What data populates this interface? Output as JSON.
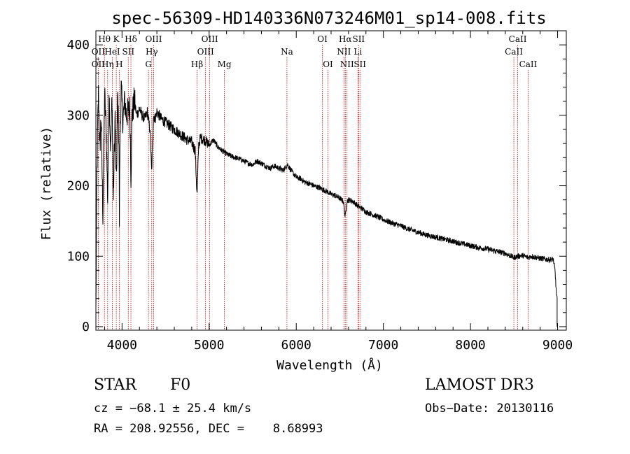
{
  "chart_data": {
    "type": "line",
    "title": "spec-56309-HD140336N073246M01_sp14-008.fits",
    "xlabel": "Wavelength (Å)",
    "ylabel": "Flux (relative)",
    "xlim": [
      3700,
      9100
    ],
    "ylim": [
      -5,
      420
    ],
    "x_ticks": [
      4000,
      5000,
      6000,
      7000,
      8000,
      9000
    ],
    "y_ticks": [
      0,
      100,
      200,
      300,
      400
    ],
    "series": [
      {
        "name": "flux",
        "x": [
          3700,
          3710,
          3720,
          3730,
          3745,
          3760,
          3780,
          3800,
          3820,
          3835,
          3850,
          3870,
          3885,
          3900,
          3920,
          3935,
          3950,
          3965,
          3970,
          3975,
          3990,
          4010,
          4030,
          4050,
          4090,
          4102,
          4115,
          4140,
          4170,
          4200,
          4230,
          4260,
          4290,
          4320,
          4340,
          4360,
          4380,
          4400,
          4450,
          4500,
          4550,
          4600,
          4650,
          4700,
          4750,
          4800,
          4840,
          4861,
          4880,
          4900,
          4950,
          5000,
          5050,
          5100,
          5150,
          5200,
          5250,
          5300,
          5350,
          5400,
          5450,
          5500,
          5550,
          5600,
          5650,
          5700,
          5750,
          5800,
          5850,
          5900,
          5950,
          6000,
          6050,
          6100,
          6150,
          6200,
          6250,
          6300,
          6350,
          6400,
          6450,
          6500,
          6540,
          6563,
          6580,
          6600,
          6650,
          6700,
          6750,
          6800,
          6900,
          7000,
          7100,
          7200,
          7300,
          7400,
          7500,
          7600,
          7700,
          7800,
          7900,
          8000,
          8100,
          8200,
          8300,
          8400,
          8498,
          8542,
          8600,
          8662,
          8700,
          8800,
          8900,
          8950,
          8970,
          8985,
          8995
        ],
        "values": [
          20,
          200,
          280,
          330,
          250,
          300,
          160,
          330,
          270,
          180,
          340,
          250,
          330,
          180,
          300,
          200,
          330,
          260,
          150,
          250,
          340,
          290,
          320,
          300,
          310,
          210,
          300,
          320,
          300,
          310,
          300,
          295,
          305,
          280,
          220,
          300,
          295,
          305,
          295,
          290,
          285,
          280,
          275,
          270,
          265,
          262,
          250,
          185,
          258,
          268,
          265,
          258,
          265,
          255,
          250,
          245,
          242,
          240,
          238,
          235,
          232,
          230,
          235,
          232,
          228,
          225,
          228,
          225,
          222,
          230,
          220,
          212,
          210,
          205,
          203,
          200,
          198,
          195,
          192,
          188,
          186,
          182,
          178,
          155,
          178,
          180,
          178,
          172,
          168,
          163,
          158,
          152,
          147,
          143,
          138,
          134,
          130,
          127,
          124,
          121,
          118,
          115,
          112,
          110,
          107,
          104,
          98,
          100,
          101,
          98,
          100,
          97,
          95,
          96,
          80,
          50,
          40
        ]
      }
    ],
    "spectral_lines": [
      {
        "label": "Hθ",
        "x": 3798,
        "row": 0
      },
      {
        "label": "K",
        "x": 3934,
        "row": 0
      },
      {
        "label": "Hδ",
        "x": 4102,
        "row": 0
      },
      {
        "label": "OIII",
        "x": 4363,
        "row": 0
      },
      {
        "label": "OII",
        "x": 3727,
        "row": 1
      },
      {
        "label": "HeI",
        "x": 3889,
        "row": 1
      },
      {
        "label": "SII",
        "x": 4072,
        "row": 1
      },
      {
        "label": "Hγ",
        "x": 4341,
        "row": 1
      },
      {
        "label": "OII",
        "x": 3727,
        "row": 2
      },
      {
        "label": "Hη",
        "x": 3835,
        "row": 2
      },
      {
        "label": "H",
        "x": 3968,
        "row": 2
      },
      {
        "label": "G",
        "x": 4304,
        "row": 2
      },
      {
        "label": "OIII",
        "x": 5007,
        "row": 0
      },
      {
        "label": "OIII",
        "x": 4959,
        "row": 1
      },
      {
        "label": "Hβ",
        "x": 4861,
        "row": 2
      },
      {
        "label": "Mg",
        "x": 5175,
        "row": 2
      },
      {
        "label": "Na",
        "x": 5893,
        "row": 1
      },
      {
        "label": "OI",
        "x": 6300,
        "row": 0
      },
      {
        "label": "OI",
        "x": 6364,
        "row": 2
      },
      {
        "label": "Hα",
        "x": 6563,
        "row": 0
      },
      {
        "label": "SII",
        "x": 6716,
        "row": 0
      },
      {
        "label": "NII",
        "x": 6548,
        "row": 1
      },
      {
        "label": "Li",
        "x": 6708,
        "row": 1
      },
      {
        "label": "NII",
        "x": 6583,
        "row": 2
      },
      {
        "label": "SII",
        "x": 6731,
        "row": 2
      },
      {
        "label": "CaII",
        "x": 8542,
        "row": 0
      },
      {
        "label": "CaII",
        "x": 8498,
        "row": 1
      },
      {
        "label": "CaII",
        "x": 8662,
        "row": 2
      }
    ],
    "colors": {
      "spectrum": "#000000",
      "lines": "#cc0000",
      "axes": "#000000"
    }
  },
  "info": {
    "object_class": "STAR",
    "subclass": "F0",
    "survey": "LAMOST DR3",
    "cz": "cz = −68.1 ± 25.4 km/s",
    "obs_date": "Obs−Date: 20130116",
    "coords": "RA = 208.92556, DEC =    8.68993"
  }
}
